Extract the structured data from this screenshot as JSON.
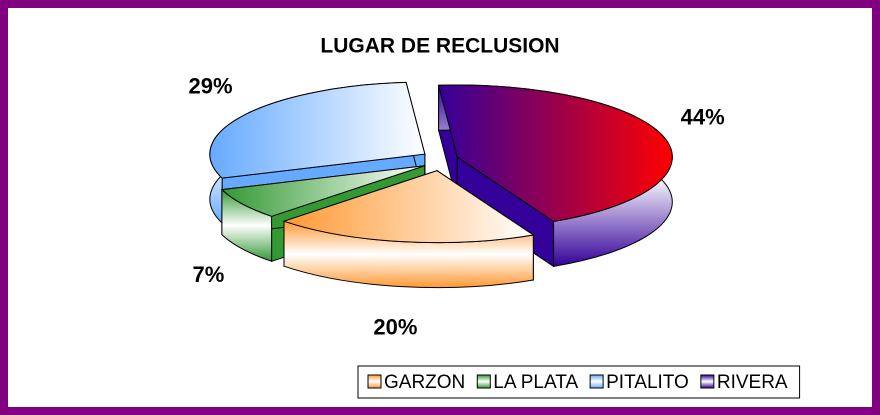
{
  "chart_data": {
    "type": "pie3d",
    "title": "LUGAR DE RECLUSION",
    "categories": [
      "GARZON",
      "LA PLATA",
      "PITALITO",
      "RIVERA"
    ],
    "values": [
      20,
      7,
      29,
      44
    ],
    "value_labels": [
      "20%",
      "7%",
      "29%",
      "44%"
    ],
    "colors": [
      "#ff9933",
      "#339933",
      "#66aaff",
      "#330099"
    ],
    "legend": "bottom"
  }
}
